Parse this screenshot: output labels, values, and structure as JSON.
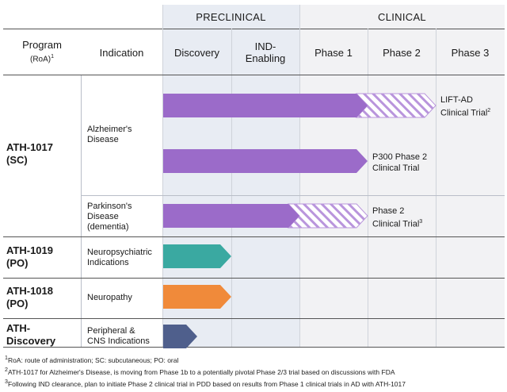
{
  "bands": {
    "preclinical": "PRECLINICAL",
    "clinical": "CLINICAL"
  },
  "columns": {
    "program": "Program",
    "program_sub": "(RoA)",
    "program_sup": "1",
    "indication": "Indication",
    "discovery": "Discovery",
    "ind_line1": "IND-",
    "ind_line2": "Enabling",
    "phase1": "Phase 1",
    "phase2": "Phase 2",
    "phase3": "Phase 3"
  },
  "programs": [
    {
      "name_line1": "ATH-1017",
      "name_line2": "(SC)",
      "indications": [
        {
          "label_lines": [
            "Alzheimer's",
            "Disease"
          ],
          "bars": [
            {
              "color": "#9b6bc9",
              "solid_to_stage": 3.0,
              "hatched_to_stage": 4.0,
              "caption_lines": [
                "LIFT-AD",
                "Clinical Trial"
              ],
              "caption_sup": "2"
            },
            {
              "color": "#9b6bc9",
              "solid_to_stage": 3.0,
              "hatched_to_stage": 3.0,
              "caption_lines": [
                "P300 Phase 2",
                "Clinical Trial"
              ],
              "caption_sup": ""
            }
          ]
        },
        {
          "label_lines": [
            "Parkinson's",
            "Disease",
            "(dementia)"
          ],
          "bars": [
            {
              "color": "#9b6bc9",
              "solid_to_stage": 2.0,
              "hatched_to_stage": 3.0,
              "caption_lines": [
                "Phase 2",
                "Clinical Trial"
              ],
              "caption_sup": "3"
            }
          ]
        }
      ]
    },
    {
      "name_line1": "ATH-1019",
      "name_line2": "(PO)",
      "indications": [
        {
          "label_lines": [
            "Neuropsychiatric",
            "Indications"
          ],
          "bars": [
            {
              "color": "#3aa9a1",
              "solid_to_stage": 1.0,
              "hatched_to_stage": 1.0,
              "caption_lines": [],
              "caption_sup": ""
            }
          ]
        }
      ]
    },
    {
      "name_line1": "ATH-1018",
      "name_line2": "(PO)",
      "indications": [
        {
          "label_lines": [
            "Neuropathy"
          ],
          "bars": [
            {
              "color": "#f08a3a",
              "solid_to_stage": 1.0,
              "hatched_to_stage": 1.0,
              "caption_lines": [],
              "caption_sup": ""
            }
          ]
        }
      ]
    },
    {
      "name_line1": "ATH-",
      "name_line2": "Discovery",
      "indications": [
        {
          "label_lines": [
            "Peripheral &",
            "CNS Indications"
          ],
          "bars": [
            {
              "color": "#4f5f8c",
              "solid_to_stage": 0.5,
              "hatched_to_stage": 0.5,
              "caption_lines": [],
              "caption_sup": ""
            }
          ]
        }
      ]
    }
  ],
  "footnotes": [
    {
      "sup": "1",
      "text": "RoA: route of administration; SC: subcutaneous; PO: oral"
    },
    {
      "sup": "2",
      "text": "ATH-1017 for Alzheimer's Disease, is moving from Phase 1b to a potentially pivotal Phase 2/3 trial based on discussions with FDA"
    },
    {
      "sup": "3",
      "text": "Following IND clearance, plan to initiate Phase 2 clinical trial in PDD based on results from Phase 1 clinical trials in AD with ATH-1017"
    }
  ]
}
